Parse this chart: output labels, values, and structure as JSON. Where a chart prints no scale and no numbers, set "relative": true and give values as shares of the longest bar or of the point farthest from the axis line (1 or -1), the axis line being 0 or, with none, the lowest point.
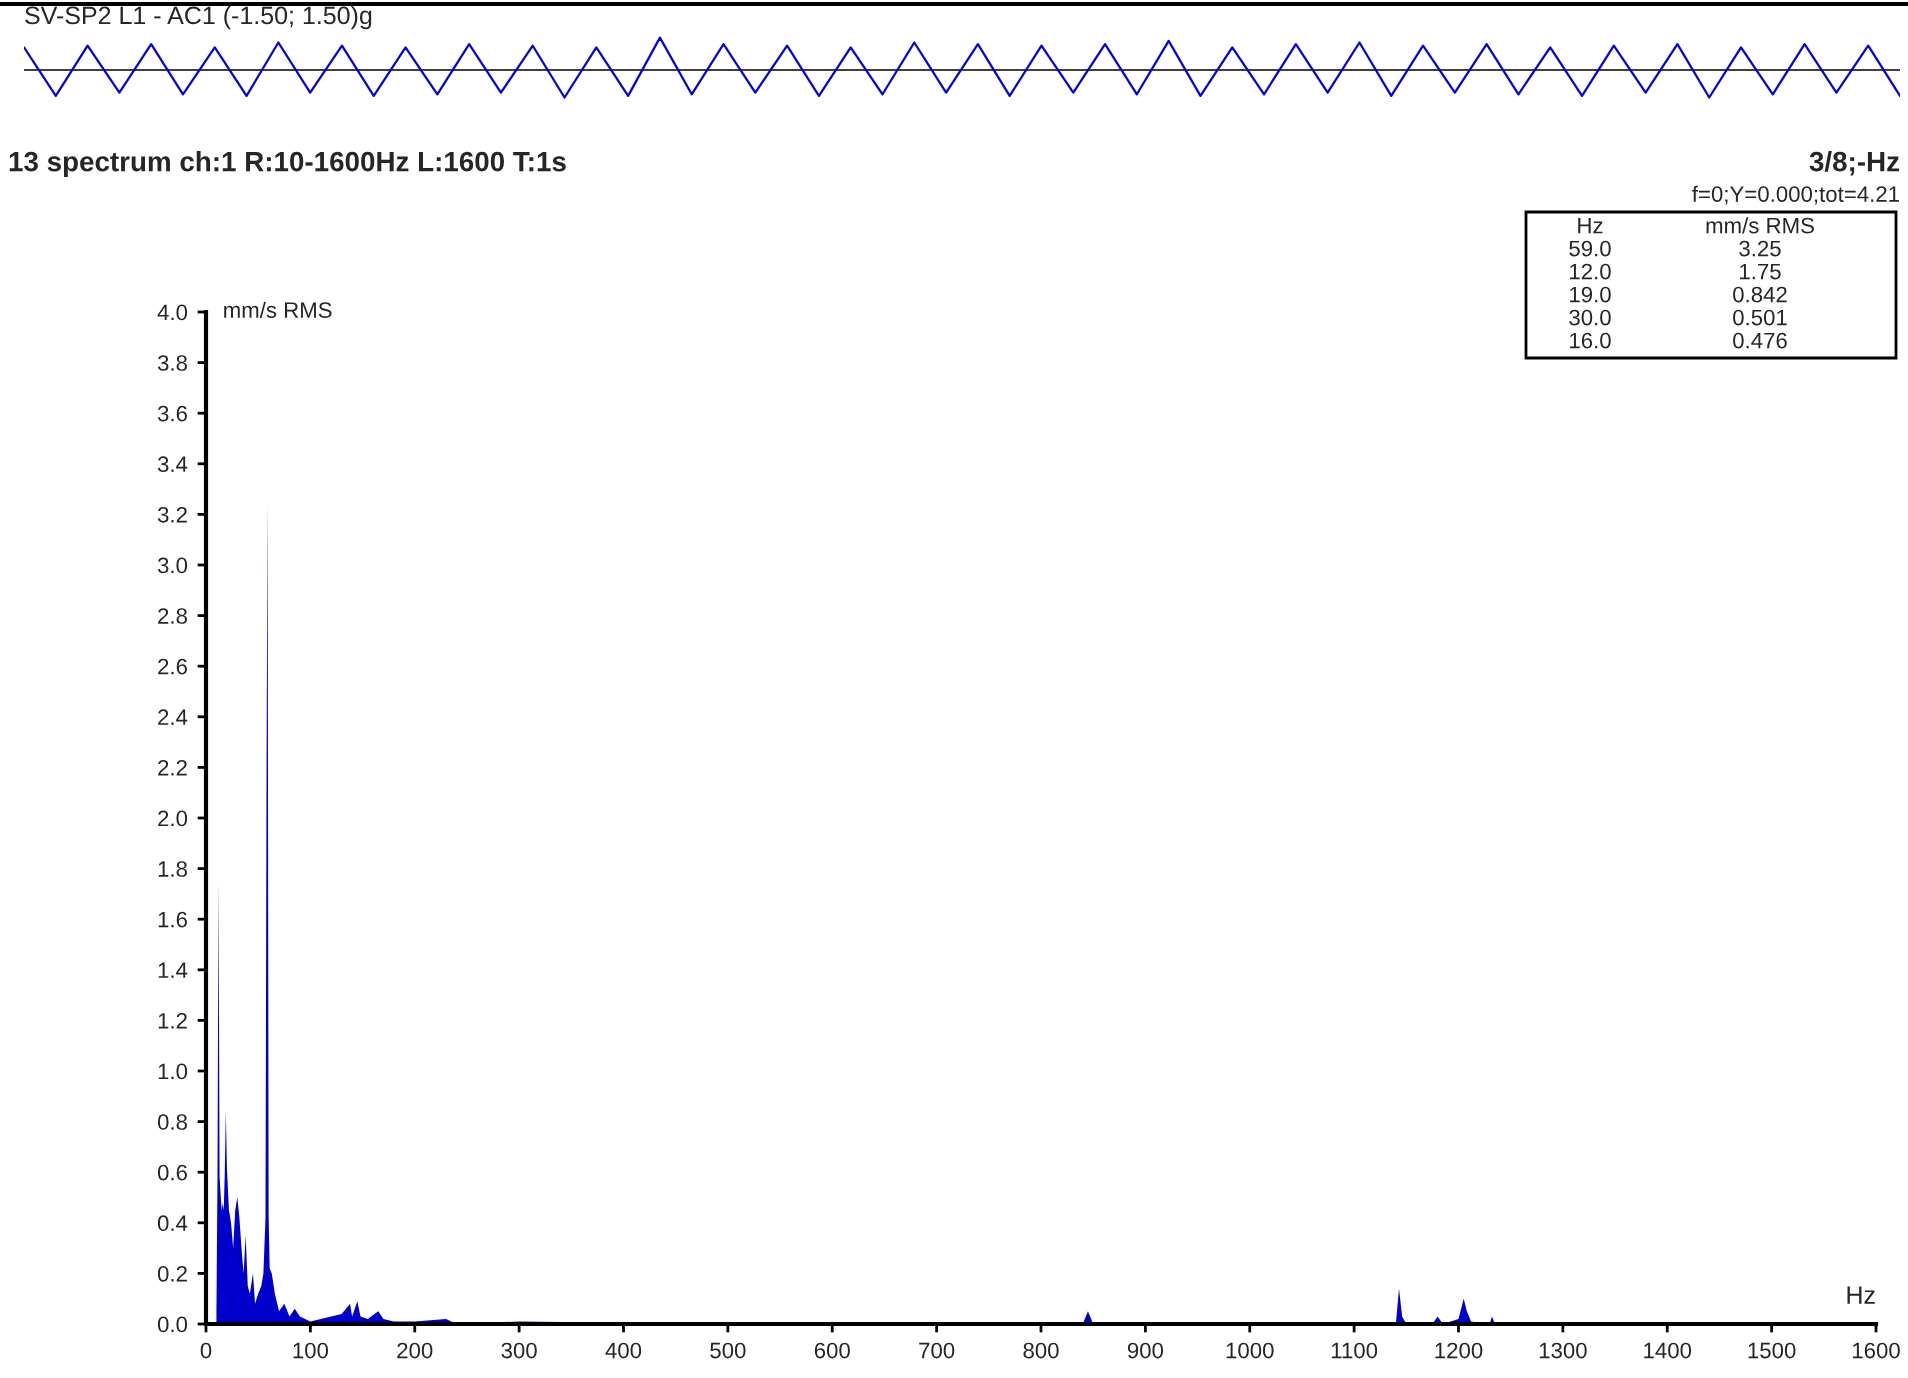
{
  "chart_data": [
    {
      "type": "line",
      "title": "SV-SP2 L1 - AC1 (-1.50; 1.50)g",
      "relative": true,
      "tick_labels": false,
      "categories": [
        null,
        null,
        null,
        null,
        null,
        null,
        null,
        null,
        null,
        null,
        null,
        null,
        null,
        null,
        null,
        null,
        null,
        null,
        null,
        null,
        null,
        null,
        null,
        null,
        null,
        null,
        null,
        null,
        null,
        null,
        null,
        null,
        null,
        null,
        null,
        null,
        null,
        null,
        null,
        null,
        null,
        null,
        null,
        null,
        null,
        null,
        null,
        null,
        null,
        null,
        null,
        null,
        null,
        null,
        null,
        null,
        null,
        null,
        null,
        null
      ],
      "series": [
        {
          "color": "#0000ee",
          "values": [
            0.7,
            -0.8,
            0.75,
            -0.7,
            0.8,
            -0.75,
            0.7,
            -0.8,
            0.85,
            -0.7,
            0.75,
            -0.8,
            0.7,
            -0.75,
            0.8,
            -0.7,
            0.75,
            -0.85,
            0.7,
            -0.8,
            1.0,
            -0.75,
            0.8,
            -0.7,
            0.75,
            -0.8,
            0.7,
            -0.75,
            0.85,
            -0.7,
            0.8,
            -0.8,
            0.75,
            -0.7,
            0.8,
            -0.75,
            0.9,
            -0.8,
            0.7,
            -0.75,
            0.8,
            -0.7,
            0.85,
            -0.8,
            0.75,
            -0.7,
            0.8,
            -0.75,
            0.7,
            -0.8,
            0.75,
            -0.7,
            0.8,
            -0.85,
            0.7,
            -0.75,
            0.8,
            -0.7,
            0.75,
            -0.8
          ]
        }
      ]
    },
    {
      "type": "area",
      "title": "13 spectrum ch:1 R:10-1600Hz L:1600 T:1s",
      "xlabel": "Hz",
      "ylabel": "mm/s RMS",
      "xlim": [
        0,
        1600
      ],
      "xticks": [
        0,
        100,
        200,
        300,
        400,
        500,
        600,
        700,
        800,
        900,
        1000,
        1100,
        1200,
        1300,
        1400,
        1500,
        1600
      ],
      "ylim": [
        0,
        4.0
      ],
      "yticks": [
        {
          "value": 0,
          "label": "0.0"
        },
        {
          "value": 0.2,
          "label": "0.2"
        },
        {
          "value": 0.4,
          "label": "0.4"
        },
        {
          "value": 0.6,
          "label": "0.6"
        },
        {
          "value": 0.8,
          "label": "0.8"
        },
        {
          "value": 1.0,
          "label": "1.0"
        },
        {
          "value": 1.2,
          "label": "1.2"
        },
        {
          "value": 1.4,
          "label": "1.4"
        },
        {
          "value": 1.6,
          "label": "1.6"
        },
        {
          "value": 1.8,
          "label": "1.8"
        },
        {
          "value": 2.0,
          "label": "2.0"
        },
        {
          "value": 2.2,
          "label": "2.2"
        },
        {
          "value": 2.4,
          "label": "2.4"
        },
        {
          "value": 2.6,
          "label": "2.6"
        },
        {
          "value": 2.8,
          "label": "2.8"
        },
        {
          "value": 3.0,
          "label": "3.0"
        },
        {
          "value": 3.2,
          "label": "3.2"
        },
        {
          "value": 3.4,
          "label": "3.4"
        },
        {
          "value": 3.6,
          "label": "3.6"
        },
        {
          "value": 3.8,
          "label": "3.8"
        },
        {
          "value": 4.0,
          "label": "4.0"
        }
      ],
      "annotations": [
        "3/8;-Hz",
        "f=0;Y=0.000;tot=4.21",
        "Hz",
        "mm/s RMS",
        "59.0",
        "3.25",
        "12.0",
        "1.75",
        "19.0",
        "0.842",
        "30.0",
        "0.501",
        "16.0",
        "0.476"
      ],
      "series": [
        {
          "color": "#0000cc",
          "x": [
            10,
            11,
            12,
            13,
            15,
            16,
            17,
            18,
            19,
            20,
            22,
            24,
            26,
            28,
            30,
            32,
            34,
            36,
            38,
            40,
            42,
            45,
            47,
            50,
            53,
            55,
            57,
            58,
            59,
            60,
            61,
            63,
            66,
            70,
            75,
            80,
            85,
            90,
            95,
            100,
            110,
            120,
            130,
            138,
            140,
            145,
            148,
            155,
            165,
            170,
            180,
            200,
            230,
            240,
            300,
            400,
            600,
            840,
            845,
            850,
            1140,
            1143,
            1146,
            1150,
            1175,
            1180,
            1185,
            1200,
            1205,
            1208,
            1212,
            1230,
            1232,
            1235,
            1600
          ],
          "values": [
            0.05,
            0.58,
            1.75,
            0.58,
            0.45,
            0.476,
            0.45,
            0.6,
            0.842,
            0.62,
            0.45,
            0.4,
            0.3,
            0.45,
            0.501,
            0.42,
            0.3,
            0.2,
            0.35,
            0.15,
            0.12,
            0.2,
            0.08,
            0.12,
            0.15,
            0.2,
            0.42,
            2.18,
            3.25,
            0.43,
            0.22,
            0.2,
            0.12,
            0.05,
            0.08,
            0.03,
            0.06,
            0.03,
            0.02,
            0.01,
            0.02,
            0.03,
            0.04,
            0.08,
            0.03,
            0.09,
            0.03,
            0.02,
            0.05,
            0.02,
            0.01,
            0.01,
            0.02,
            0.0,
            0.01,
            0.005,
            0.005,
            0.0,
            0.05,
            0.0,
            0.0,
            0.14,
            0.03,
            0.0,
            0.0,
            0.03,
            0.0,
            0.02,
            0.1,
            0.05,
            0.01,
            0.0,
            0.03,
            0.0,
            0.0
          ]
        }
      ]
    }
  ]
}
